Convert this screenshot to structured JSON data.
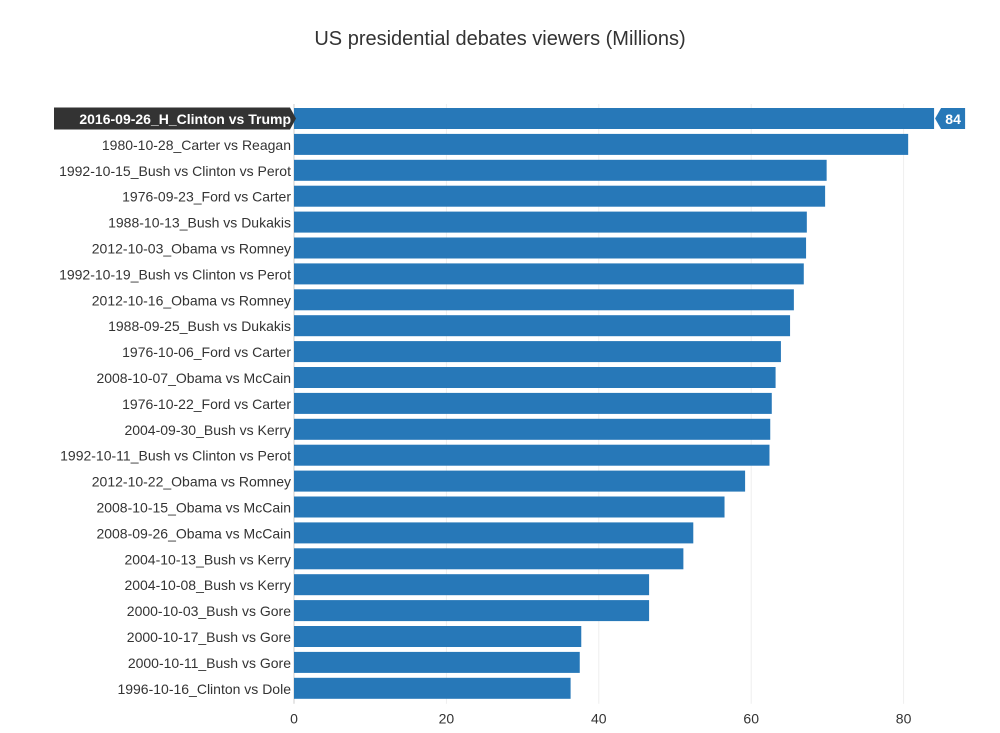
{
  "chart_data": {
    "type": "bar",
    "orientation": "horizontal",
    "title": "US presidential debates viewers (Millions)",
    "xlabel": "",
    "ylabel": "",
    "xlim": [
      0,
      88
    ],
    "xticks": [
      0,
      20,
      40,
      60,
      80
    ],
    "grid": true,
    "bar_color": "#2778b8",
    "highlight_label_color": "#333333",
    "categories": [
      "2016-09-26_H_Clinton vs Trump",
      "1980-10-28_Carter vs Reagan",
      "1992-10-15_Bush vs Clinton vs Perot",
      "1976-09-23_Ford vs Carter",
      "1988-10-13_Bush vs Dukakis",
      "2012-10-03_Obama vs Romney",
      "1992-10-19_Bush vs Clinton vs Perot",
      "2012-10-16_Obama vs Romney",
      "1988-09-25_Bush vs Dukakis",
      "1976-10-06_Ford vs Carter",
      "2008-10-07_Obama vs McCain",
      "1976-10-22_Ford vs Carter",
      "2004-09-30_Bush vs Kerry",
      "1992-10-11_Bush vs Clinton vs Perot",
      "2012-10-22_Obama vs Romney",
      "2008-10-15_Obama vs McCain",
      "2008-09-26_Obama vs McCain",
      "2004-10-13_Bush vs Kerry",
      "2004-10-08_Bush vs Kerry",
      "2000-10-03_Bush vs Gore",
      "2000-10-17_Bush vs Gore",
      "2000-10-11_Bush vs Gore",
      "1996-10-16_Clinton vs Dole"
    ],
    "values": [
      84,
      80.6,
      69.9,
      69.7,
      67.3,
      67.2,
      66.9,
      65.6,
      65.1,
      63.9,
      63.2,
      62.7,
      62.5,
      62.4,
      59.2,
      56.5,
      52.4,
      51.1,
      46.6,
      46.6,
      37.7,
      37.5,
      36.3
    ],
    "highlight_index": 0,
    "callout": "84"
  }
}
